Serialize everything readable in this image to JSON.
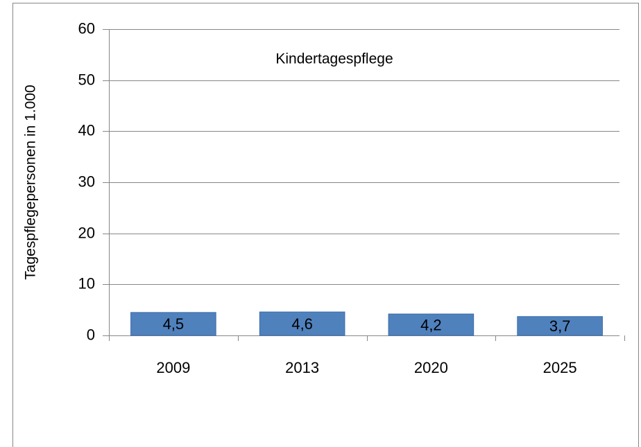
{
  "chart_data": {
    "type": "bar",
    "title": "Kindertagespflege",
    "y_label": "Tagespflegepersonen in 1.000",
    "categories": [
      "2009",
      "2013",
      "2020",
      "2025"
    ],
    "values": [
      4.5,
      4.6,
      4.2,
      3.7
    ],
    "value_labels": [
      "4,5",
      "4,6",
      "4,2",
      "3,7"
    ],
    "color": "#4f81bd",
    "ylim": [
      0,
      60
    ],
    "yticks": [
      0,
      10,
      20,
      30,
      40,
      50,
      60
    ],
    "grid": true
  }
}
